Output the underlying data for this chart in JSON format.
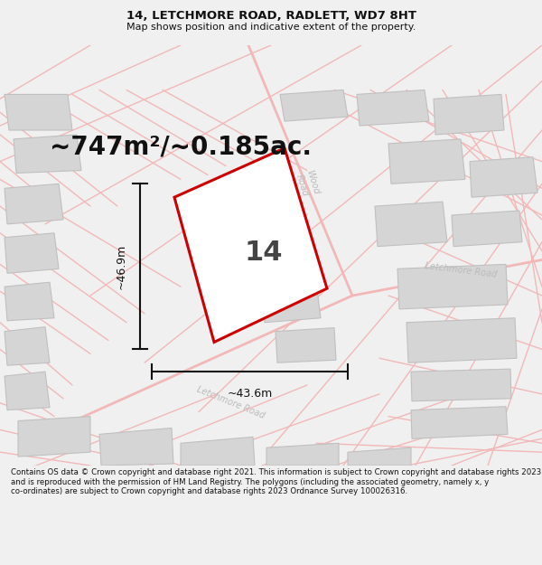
{
  "title": "14, LETCHMORE ROAD, RADLETT, WD7 8HT",
  "subtitle": "Map shows position and indicative extent of the property.",
  "footer": "Contains OS data © Crown copyright and database right 2021. This information is subject to Crown copyright and database rights 2023 and is reproduced with the permission of HM Land Registry. The polygons (including the associated geometry, namely x, y co-ordinates) are subject to Crown copyright and database rights 2023 Ordnance Survey 100026316.",
  "area_label": "~747m²/~0.185ac.",
  "width_label": "~43.6m",
  "height_label": "~46.9m",
  "number_label": "14",
  "bg_color": "#f0f0f0",
  "map_bg": "#ffffff",
  "plot_outline_color": "#cc0000",
  "road_label_color": "#bbbbbb",
  "dim_line_color": "#111111",
  "block_color": "#d5d5d5",
  "block_edge_color": "#c0c0c0",
  "pink_road_color": "#f2b8b8",
  "title_fontsize": 9.5,
  "subtitle_fontsize": 8,
  "area_fontsize": 20,
  "number_fontsize": 22,
  "footer_fontsize": 6.2
}
